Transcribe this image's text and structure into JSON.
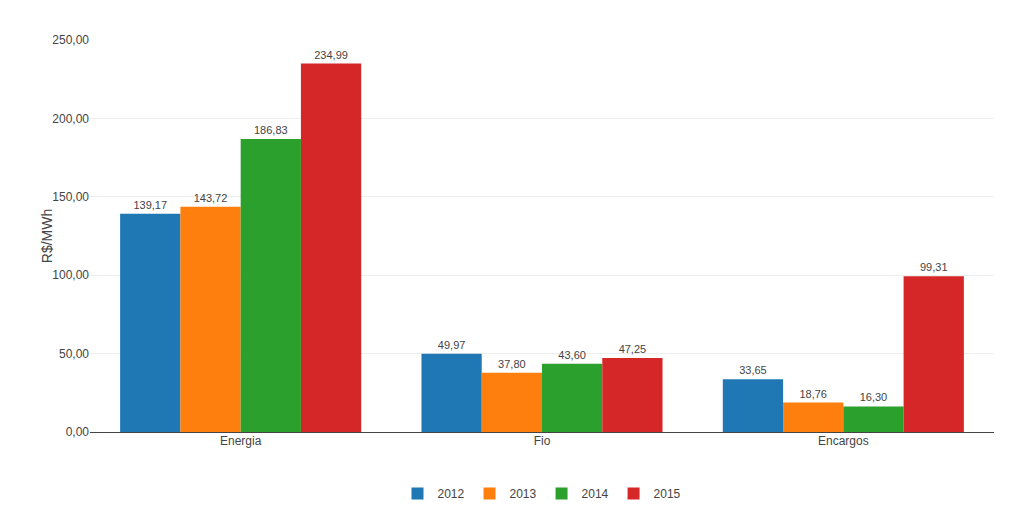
{
  "chart_data": {
    "type": "bar",
    "categories": [
      "Energia",
      "Fio",
      "Encargos"
    ],
    "series": [
      {
        "name": "2012",
        "values": [
          139.17,
          49.97,
          33.65
        ],
        "value_labels": [
          "139,17",
          "49,97",
          "33,65"
        ]
      },
      {
        "name": "2013",
        "values": [
          143.72,
          37.8,
          18.76
        ],
        "value_labels": [
          "143,72",
          "37,80",
          "18,76"
        ]
      },
      {
        "name": "2014",
        "values": [
          186.83,
          43.6,
          16.3
        ],
        "value_labels": [
          "186,83",
          "43,60",
          "16,30"
        ]
      },
      {
        "name": "2015",
        "values": [
          234.99,
          47.25,
          99.31
        ],
        "value_labels": [
          "234,99",
          "47,25",
          "99,31"
        ]
      }
    ],
    "ylabel": "R$/MWh",
    "ylim": [
      0,
      250
    ],
    "yticks": [
      {
        "value": 0,
        "label": "0,00"
      },
      {
        "value": 50,
        "label": "50,00"
      },
      {
        "value": 100,
        "label": "100,00"
      },
      {
        "value": 150,
        "label": "150,00"
      },
      {
        "value": 200,
        "label": "200,00"
      },
      {
        "value": 250,
        "label": "250,00"
      }
    ],
    "grid": true,
    "legend": "bottom",
    "data_labels": true
  }
}
